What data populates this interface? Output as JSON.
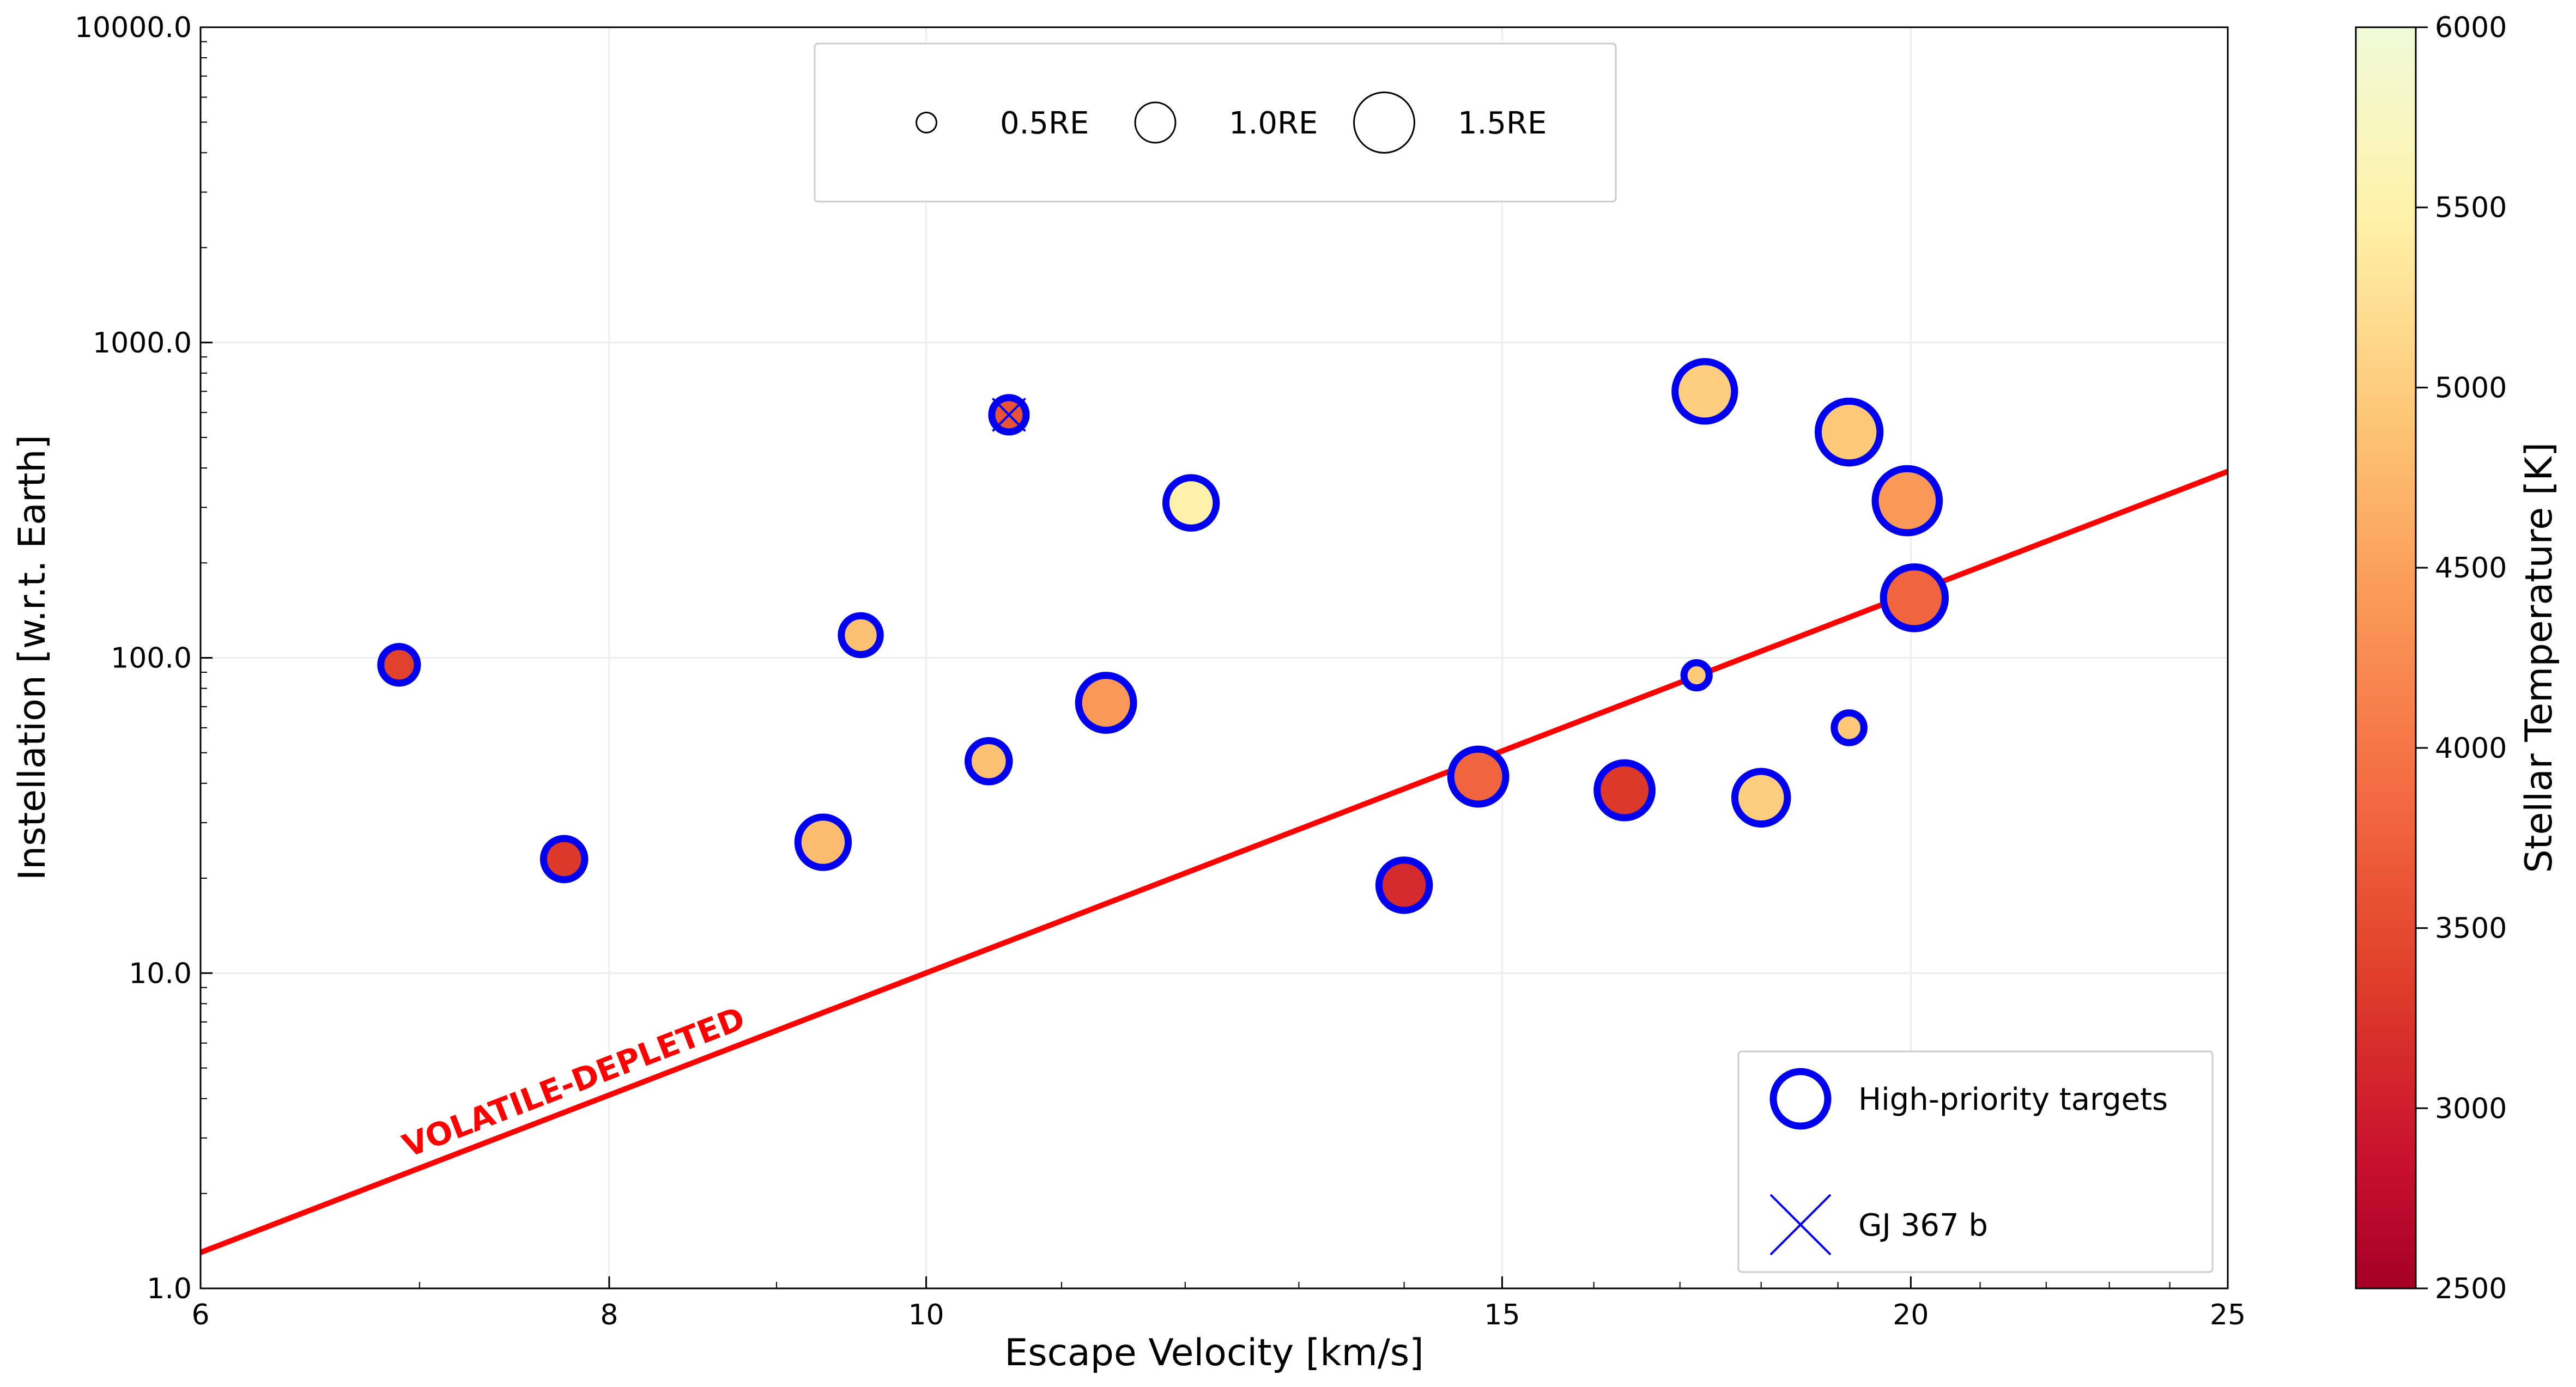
{
  "chart_data": {
    "type": "scatter",
    "xlabel": "Escape Velocity [km/s]",
    "ylabel": "Instellation [w.r.t. Earth]",
    "x_scale": "log",
    "y_scale": "log",
    "xlim": [
      6,
      25
    ],
    "ylim": [
      1,
      10000
    ],
    "x_ticks": [
      6,
      8,
      10,
      15,
      20,
      25
    ],
    "x_tick_labels": [
      "6",
      "8",
      "10",
      "15",
      "20",
      "25"
    ],
    "y_ticks": [
      1,
      10,
      100,
      1000,
      10000
    ],
    "y_tick_labels": [
      "1.0",
      "10.0",
      "100.0",
      "1000.0",
      "10000.0"
    ],
    "grid": true,
    "colorbar": {
      "label": "Stellar Temperature [K]",
      "colormap": "YlOrRd_r",
      "range": [
        2500,
        6000
      ],
      "ticks": [
        2500,
        3000,
        3500,
        4000,
        4500,
        5000,
        5500,
        6000
      ],
      "tick_labels": [
        "2500",
        "3000",
        "3500",
        "4000",
        "4500",
        "5000",
        "5500",
        "6000"
      ]
    },
    "size_legend": {
      "entries": [
        {
          "label": "0.5RE",
          "radius_earth": 0.5
        },
        {
          "label": "1.0RE",
          "radius_earth": 1.0
        },
        {
          "label": "1.5RE",
          "radius_earth": 1.5
        }
      ]
    },
    "legend": {
      "placement": "lower-right",
      "entries": [
        {
          "label": "High-priority targets",
          "marker": "blue-open-circle",
          "color": "#0000ee"
        },
        {
          "label": "GJ 367 b",
          "marker": "blue-x",
          "color": "#0000ee"
        }
      ]
    },
    "line": {
      "color": "#ff0000",
      "label": "VOLATILE-DEPLETED",
      "points": [
        [
          6,
          1.3
        ],
        [
          25,
          390
        ]
      ]
    },
    "series": [
      {
        "points": [
          {
            "x": 6.9,
            "y": 95,
            "radius_earth": 0.8,
            "temp": 3400
          },
          {
            "x": 7.75,
            "y": 23,
            "radius_earth": 0.9,
            "temp": 3300
          },
          {
            "x": 9.3,
            "y": 26,
            "radius_earth": 1.1,
            "temp": 4800
          },
          {
            "x": 9.55,
            "y": 118,
            "radius_earth": 0.85,
            "temp": 4850
          },
          {
            "x": 10.45,
            "y": 47,
            "radius_earth": 0.9,
            "temp": 4850
          },
          {
            "x": 10.6,
            "y": 590,
            "radius_earth": 0.75,
            "temp": 3600,
            "name": "GJ 367 b"
          },
          {
            "x": 11.35,
            "y": 72,
            "radius_earth": 1.2,
            "temp": 4400
          },
          {
            "x": 12.05,
            "y": 310,
            "radius_earth": 1.1,
            "temp": 5500
          },
          {
            "x": 14.0,
            "y": 19,
            "radius_earth": 1.1,
            "temp": 3150
          },
          {
            "x": 14.75,
            "y": 42,
            "radius_earth": 1.2,
            "temp": 3800
          },
          {
            "x": 16.35,
            "y": 38,
            "radius_earth": 1.2,
            "temp": 3300
          },
          {
            "x": 17.2,
            "y": 88,
            "radius_earth": 0.55,
            "temp": 4950
          },
          {
            "x": 17.3,
            "y": 700,
            "radius_earth": 1.3,
            "temp": 5000
          },
          {
            "x": 18.0,
            "y": 36,
            "radius_earth": 1.15,
            "temp": 5000
          },
          {
            "x": 19.15,
            "y": 60,
            "radius_earth": 0.65,
            "temp": 4950
          },
          {
            "x": 19.15,
            "y": 520,
            "radius_earth": 1.35,
            "temp": 4950
          },
          {
            "x": 19.95,
            "y": 315,
            "radius_earth": 1.4,
            "temp": 4400
          },
          {
            "x": 20.05,
            "y": 155,
            "radius_earth": 1.35,
            "temp": 3800
          }
        ]
      }
    ]
  }
}
